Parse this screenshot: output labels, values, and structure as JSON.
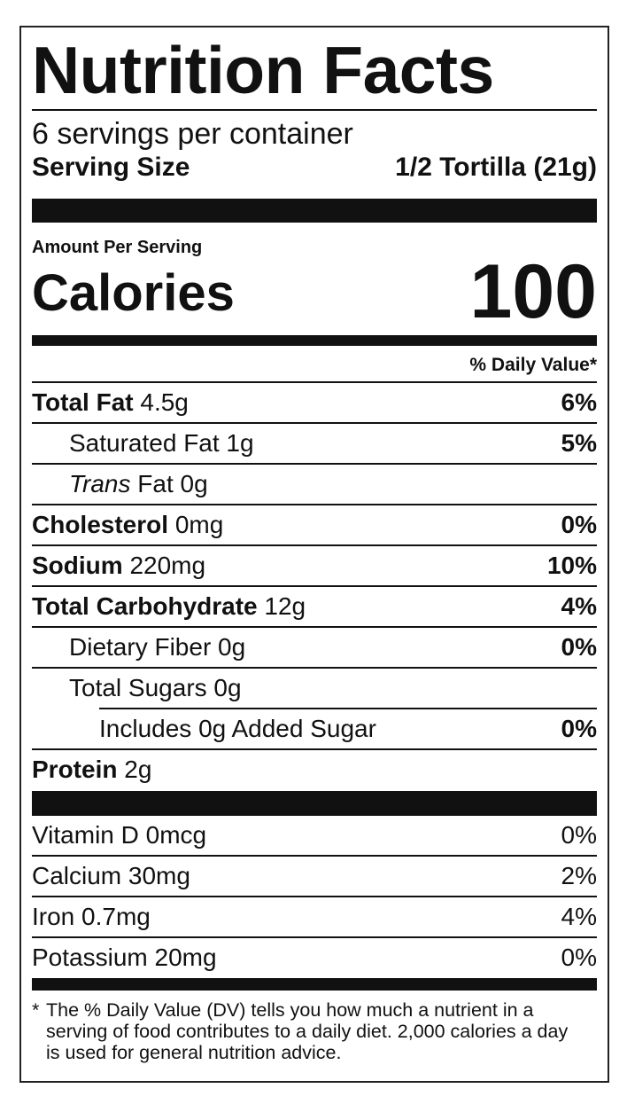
{
  "title": "Nutrition Facts",
  "servings_per_container": "6 servings per container",
  "serving_size": {
    "label": "Serving Size",
    "value": "1/2 Tortilla (21g)"
  },
  "amount_per_serving": "Amount Per Serving",
  "calories": {
    "label": "Calories",
    "value": "100"
  },
  "daily_value_header": "% Daily Value*",
  "nutrients": [
    {
      "bold": "Total Fat",
      "amount": "4.5g",
      "dv": "6%"
    },
    {
      "plain": "Saturated Fat 1g",
      "dv": "5%"
    },
    {
      "italic": "Trans",
      "plain": "Fat 0g",
      "dv": ""
    },
    {
      "bold": "Cholesterol",
      "amount": "0mg",
      "dv": "0%"
    },
    {
      "bold": "Sodium",
      "amount": "220mg",
      "dv": "10%"
    },
    {
      "bold": "Total Carbohydrate",
      "amount": "12g",
      "dv": "4%"
    },
    {
      "plain": "Dietary Fiber 0g",
      "dv": "0%"
    },
    {
      "plain": "Total Sugars 0g",
      "dv": ""
    },
    {
      "plain": "Includes 0g Added Sugar",
      "dv": "0%"
    },
    {
      "bold": "Protein",
      "amount": "2g",
      "dv": ""
    }
  ],
  "vitamins": [
    {
      "label": "Vitamin D 0mcg",
      "dv": "0%"
    },
    {
      "label": "Calcium 30mg",
      "dv": "2%"
    },
    {
      "label": "Iron 0.7mg",
      "dv": "4%"
    },
    {
      "label": "Potassium 20mg",
      "dv": "0%"
    }
  ],
  "footnote": {
    "asterisk": "*",
    "text": "The % Daily Value (DV) tells you how much a nutrient in a serving of food contributes to a daily diet. 2,000 calories a day is used for general nutrition advice."
  }
}
